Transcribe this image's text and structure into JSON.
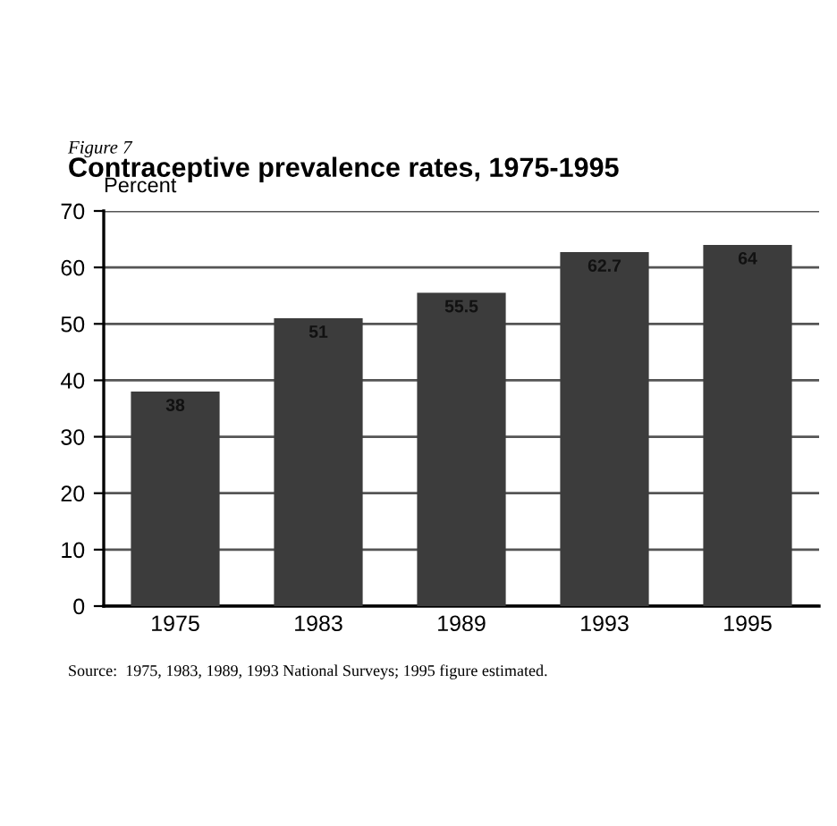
{
  "chart_data": {
    "type": "bar",
    "subtitle": "Figure 7",
    "title": "Contraceptive prevalence rates, 1975-1995",
    "ylabel": "Percent",
    "categories": [
      "1975",
      "1983",
      "1989",
      "1993",
      "1995"
    ],
    "values": [
      38,
      51,
      55.5,
      62.7,
      64
    ],
    "color": "#3c3c3c",
    "data_labels": true,
    "ylim": [
      0,
      70
    ],
    "yticks": [
      0,
      10,
      20,
      30,
      40,
      50,
      60,
      70
    ],
    "grid": "y",
    "annotations": [
      "Source:  1975, 1983, 1989, 1993 National Surveys; 1995 figure estimated."
    ]
  }
}
